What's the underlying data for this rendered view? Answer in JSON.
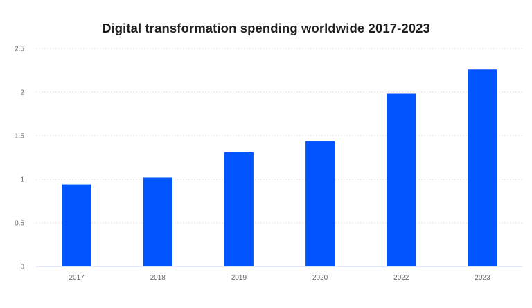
{
  "chart_data": {
    "type": "bar",
    "title": "Digital transformation spending worldwide 2017-2023",
    "xlabel": "",
    "ylabel": "",
    "categories": [
      "2017",
      "2018",
      "2019",
      "2020",
      "2022",
      "2023"
    ],
    "values": [
      0.94,
      1.02,
      1.31,
      1.44,
      1.98,
      2.26
    ],
    "ylim": [
      0,
      2.5
    ],
    "yticks": [
      "0",
      "0.5",
      "1",
      "1.5",
      "2",
      "2.5"
    ],
    "grid": true,
    "legend": "none",
    "bar_color": "#0055ff",
    "grid_color": "#e3e3e3",
    "axis_color": "#c8cff0"
  }
}
